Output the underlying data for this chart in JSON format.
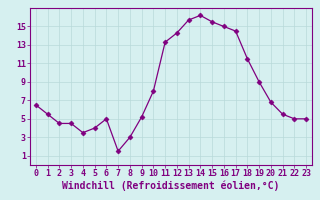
{
  "x": [
    0,
    1,
    2,
    3,
    4,
    5,
    6,
    7,
    8,
    9,
    10,
    11,
    12,
    13,
    14,
    15,
    16,
    17,
    18,
    19,
    20,
    21,
    22,
    23
  ],
  "y": [
    6.5,
    5.5,
    4.5,
    4.5,
    3.5,
    4.0,
    5.0,
    1.5,
    3.0,
    5.2,
    8.0,
    13.3,
    14.3,
    15.7,
    16.2,
    15.5,
    15.0,
    14.5,
    11.5,
    9.0,
    6.8,
    5.5,
    5.0,
    5.0
  ],
  "line_color": "#800080",
  "marker": "D",
  "marker_size": 2.5,
  "bg_color": "#d6f0f0",
  "grid_color": "#b8dada",
  "xlabel": "Windchill (Refroidissement éolien,°C)",
  "xlabel_fontsize": 7,
  "tick_fontsize": 6,
  "xlim": [
    -0.5,
    23.5
  ],
  "ylim": [
    0,
    17
  ],
  "yticks": [
    1,
    3,
    5,
    7,
    9,
    11,
    13,
    15
  ],
  "xticks": [
    0,
    1,
    2,
    3,
    4,
    5,
    6,
    7,
    8,
    9,
    10,
    11,
    12,
    13,
    14,
    15,
    16,
    17,
    18,
    19,
    20,
    21,
    22,
    23
  ]
}
